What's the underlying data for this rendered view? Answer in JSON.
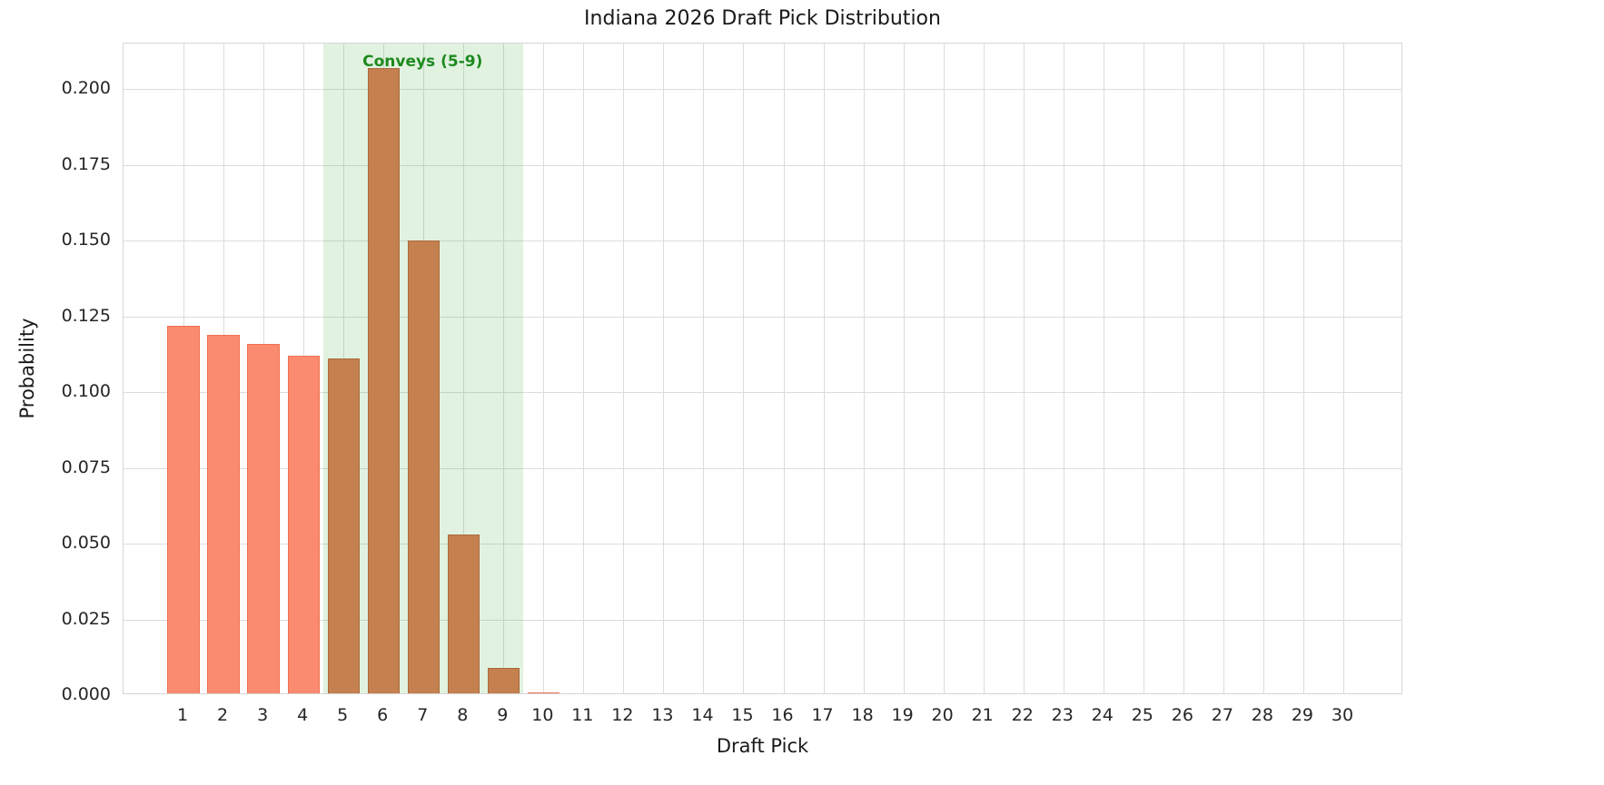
{
  "chart_data": {
    "type": "bar",
    "title": "Indiana 2026 Draft Pick Distribution",
    "xlabel": "Draft Pick",
    "ylabel": "Probability",
    "categories": [
      1,
      2,
      3,
      4,
      5,
      6,
      7,
      8,
      9,
      10,
      11,
      12,
      13,
      14,
      15,
      16,
      17,
      18,
      19,
      20,
      21,
      22,
      23,
      24,
      25,
      26,
      27,
      28,
      29,
      30
    ],
    "values": [
      0.122,
      0.119,
      0.116,
      0.112,
      0.111,
      0.207,
      0.15,
      0.053,
      0.009,
      0.001,
      0,
      0,
      0,
      0,
      0,
      0,
      0,
      0,
      0,
      0,
      0,
      0,
      0,
      0,
      0,
      0,
      0,
      0,
      0,
      0
    ],
    "x_range": [
      -0.5,
      31.5
    ],
    "y_range": [
      0,
      0.215
    ],
    "y_ticks": [
      0.0,
      0.025,
      0.05,
      0.075,
      0.1,
      0.125,
      0.15,
      0.175,
      0.2
    ],
    "y_tick_labels": [
      "0.000",
      "0.025",
      "0.050",
      "0.075",
      "0.100",
      "0.125",
      "0.150",
      "0.175",
      "0.200"
    ],
    "grid": true,
    "legend": "none",
    "bar_color": "#fa8a70",
    "bar_edge_color": "#ef7150",
    "conveyed_bar_color": "#c5804f",
    "conveyed_bar_edge_color": "#aa6a3b",
    "highlight_band": {
      "from": 4.5,
      "to": 9.5,
      "label": "Conveys (5-9)",
      "color": "rgba(44,160,44,0.14)",
      "label_color": "#1e8a1e"
    }
  }
}
